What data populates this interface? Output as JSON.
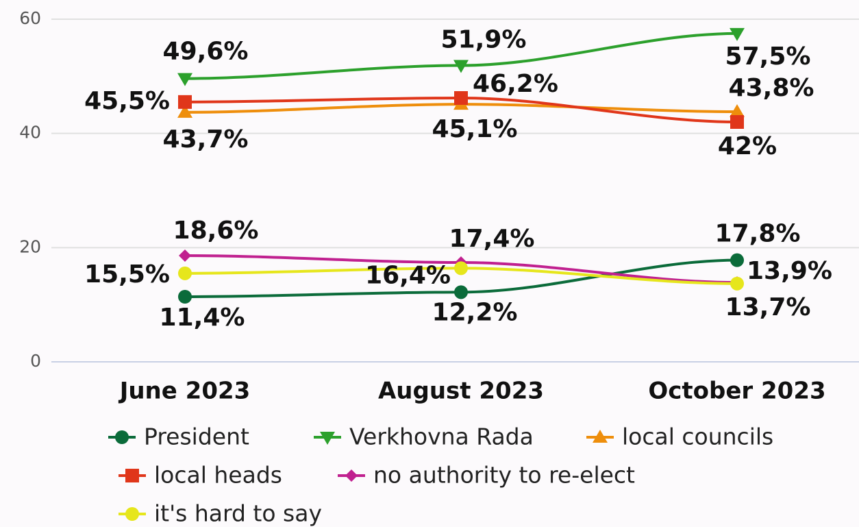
{
  "chart_data": {
    "type": "line",
    "categories": [
      "June 2023",
      "August 2023",
      "October 2023"
    ],
    "ylim": [
      0,
      60
    ],
    "yticks": [
      0,
      20,
      40,
      60
    ],
    "grid": true,
    "series": [
      {
        "name": "President",
        "color": "#0b6b3a",
        "marker": "circle",
        "values": [
          11.4,
          12.2,
          17.8
        ],
        "value_labels": [
          "11,4%",
          "12,2%",
          "17,8%"
        ]
      },
      {
        "name": "Verkhovna Rada",
        "color": "#2ca02c",
        "marker": "triangle-down",
        "values": [
          49.6,
          51.9,
          57.5
        ],
        "value_labels": [
          "49,6%",
          "51,9%",
          "57,5%"
        ]
      },
      {
        "name": "local councils",
        "color": "#ee8e0c",
        "marker": "triangle-up",
        "values": [
          43.7,
          45.1,
          43.8
        ],
        "value_labels": [
          "43,7%",
          "45,1%",
          "43,8%"
        ]
      },
      {
        "name": "local heads",
        "color": "#e0361a",
        "marker": "square",
        "values": [
          45.5,
          46.2,
          42
        ],
        "value_labels": [
          "45,5%",
          "46,2%",
          "42%"
        ]
      },
      {
        "name": "no authority to re-elect",
        "color": "#c0208f",
        "marker": "diamond",
        "values": [
          18.6,
          17.4,
          13.9
        ],
        "value_labels": [
          "18,6%",
          "17,4%",
          "13,9%"
        ]
      },
      {
        "name": "it's hard to say",
        "color": "#e6e61c",
        "marker": "circle",
        "values": [
          15.5,
          16.4,
          13.7
        ],
        "value_labels": [
          "15,5%",
          "16,4%",
          "13,7%"
        ]
      }
    ]
  }
}
